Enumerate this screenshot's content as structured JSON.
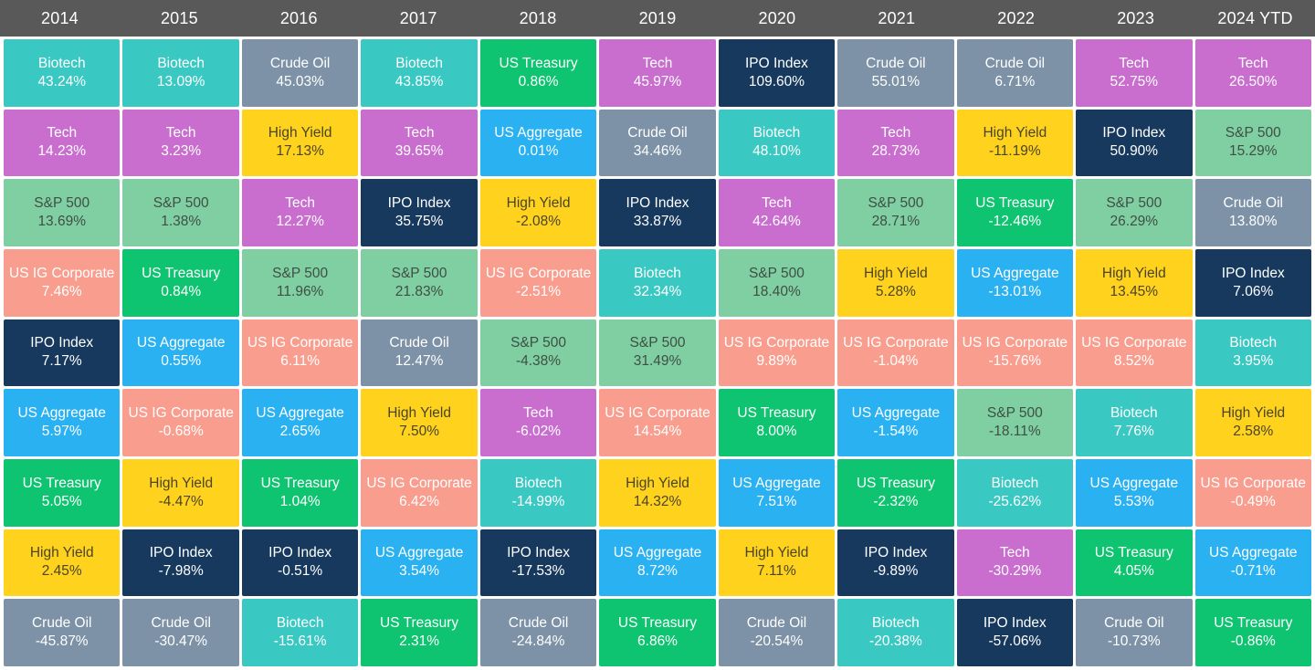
{
  "header": {
    "background": "#595959",
    "text_color": "#FFFFFF",
    "years": [
      "2014",
      "2015",
      "2016",
      "2017",
      "2018",
      "2019",
      "2020",
      "2021",
      "2022",
      "2023",
      "2024 YTD"
    ]
  },
  "asset_styles": {
    "Biotech": {
      "bg": "#3AC8C3",
      "fg": "#FFFFFF"
    },
    "Tech": {
      "bg": "#C96ECF",
      "fg": "#FFFFFF"
    },
    "Crude Oil": {
      "bg": "#7D92A7",
      "fg": "#FFFFFF"
    },
    "High Yield": {
      "bg": "#FFD21E",
      "fg": "#4A4526"
    },
    "S&P 500": {
      "bg": "#80CFA2",
      "fg": "#3E4F45"
    },
    "US IG Corporate": {
      "bg": "#F99E8E",
      "fg": "#FFFFFF"
    },
    "IPO Index": {
      "bg": "#17395E",
      "fg": "#FFFFFF"
    },
    "US Aggregate": {
      "bg": "#29B1F1",
      "fg": "#FFFFFF"
    },
    "US Treasury": {
      "bg": "#0EC471",
      "fg": "#FFFFFF"
    }
  },
  "chart_data": {
    "type": "table",
    "subtype": "periodic-table-of-returns",
    "columns": [
      "2014",
      "2015",
      "2016",
      "2017",
      "2018",
      "2019",
      "2020",
      "2021",
      "2022",
      "2023",
      "2024 YTD"
    ],
    "value_unit": "%",
    "columns_data": [
      {
        "year": "2014",
        "ranked": [
          {
            "asset": "Biotech",
            "value": 43.24
          },
          {
            "asset": "Tech",
            "value": 14.23
          },
          {
            "asset": "S&P 500",
            "value": 13.69
          },
          {
            "asset": "US IG Corporate",
            "value": 7.46
          },
          {
            "asset": "IPO Index",
            "value": 7.17
          },
          {
            "asset": "US Aggregate",
            "value": 5.97
          },
          {
            "asset": "US Treasury",
            "value": 5.05
          },
          {
            "asset": "High Yield",
            "value": 2.45
          },
          {
            "asset": "Crude Oil",
            "value": -45.87
          }
        ]
      },
      {
        "year": "2015",
        "ranked": [
          {
            "asset": "Biotech",
            "value": 13.09
          },
          {
            "asset": "Tech",
            "value": 3.23
          },
          {
            "asset": "S&P 500",
            "value": 1.38
          },
          {
            "asset": "US Treasury",
            "value": 0.84
          },
          {
            "asset": "US Aggregate",
            "value": 0.55
          },
          {
            "asset": "US IG Corporate",
            "value": -0.68
          },
          {
            "asset": "High Yield",
            "value": -4.47
          },
          {
            "asset": "IPO Index",
            "value": -7.98
          },
          {
            "asset": "Crude Oil",
            "value": -30.47
          }
        ]
      },
      {
        "year": "2016",
        "ranked": [
          {
            "asset": "Crude Oil",
            "value": 45.03
          },
          {
            "asset": "High Yield",
            "value": 17.13
          },
          {
            "asset": "Tech",
            "value": 12.27
          },
          {
            "asset": "S&P 500",
            "value": 11.96
          },
          {
            "asset": "US IG Corporate",
            "value": 6.11
          },
          {
            "asset": "US Aggregate",
            "value": 2.65
          },
          {
            "asset": "US Treasury",
            "value": 1.04
          },
          {
            "asset": "IPO Index",
            "value": -0.51
          },
          {
            "asset": "Biotech",
            "value": -15.61
          }
        ]
      },
      {
        "year": "2017",
        "ranked": [
          {
            "asset": "Biotech",
            "value": 43.85
          },
          {
            "asset": "Tech",
            "value": 39.65
          },
          {
            "asset": "IPO Index",
            "value": 35.75
          },
          {
            "asset": "S&P 500",
            "value": 21.83
          },
          {
            "asset": "Crude Oil",
            "value": 12.47
          },
          {
            "asset": "High Yield",
            "value": 7.5
          },
          {
            "asset": "US IG Corporate",
            "value": 6.42
          },
          {
            "asset": "US Aggregate",
            "value": 3.54
          },
          {
            "asset": "US Treasury",
            "value": 2.31
          }
        ]
      },
      {
        "year": "2018",
        "ranked": [
          {
            "asset": "US Treasury",
            "value": 0.86
          },
          {
            "asset": "US Aggregate",
            "value": 0.01
          },
          {
            "asset": "High Yield",
            "value": -2.08
          },
          {
            "asset": "US IG Corporate",
            "value": -2.51
          },
          {
            "asset": "S&P 500",
            "value": -4.38
          },
          {
            "asset": "Tech",
            "value": -6.02
          },
          {
            "asset": "Biotech",
            "value": -14.99
          },
          {
            "asset": "IPO Index",
            "value": -17.53
          },
          {
            "asset": "Crude Oil",
            "value": -24.84
          }
        ]
      },
      {
        "year": "2019",
        "ranked": [
          {
            "asset": "Tech",
            "value": 45.97
          },
          {
            "asset": "Crude Oil",
            "value": 34.46
          },
          {
            "asset": "IPO Index",
            "value": 33.87
          },
          {
            "asset": "Biotech",
            "value": 32.34
          },
          {
            "asset": "S&P 500",
            "value": 31.49
          },
          {
            "asset": "US IG Corporate",
            "value": 14.54
          },
          {
            "asset": "High Yield",
            "value": 14.32
          },
          {
            "asset": "US Aggregate",
            "value": 8.72
          },
          {
            "asset": "US Treasury",
            "value": 6.86
          }
        ]
      },
      {
        "year": "2020",
        "ranked": [
          {
            "asset": "IPO Index",
            "value": 109.6
          },
          {
            "asset": "Biotech",
            "value": 48.1
          },
          {
            "asset": "Tech",
            "value": 42.64
          },
          {
            "asset": "S&P 500",
            "value": 18.4
          },
          {
            "asset": "US IG Corporate",
            "value": 9.89
          },
          {
            "asset": "US Treasury",
            "value": 8.0
          },
          {
            "asset": "US Aggregate",
            "value": 7.51
          },
          {
            "asset": "High Yield",
            "value": 7.11
          },
          {
            "asset": "Crude Oil",
            "value": -20.54
          }
        ]
      },
      {
        "year": "2021",
        "ranked": [
          {
            "asset": "Crude Oil",
            "value": 55.01
          },
          {
            "asset": "Tech",
            "value": 28.73
          },
          {
            "asset": "S&P 500",
            "value": 28.71
          },
          {
            "asset": "High Yield",
            "value": 5.28
          },
          {
            "asset": "US IG Corporate",
            "value": -1.04
          },
          {
            "asset": "US Aggregate",
            "value": -1.54
          },
          {
            "asset": "US Treasury",
            "value": -2.32
          },
          {
            "asset": "IPO Index",
            "value": -9.89
          },
          {
            "asset": "Biotech",
            "value": -20.38
          }
        ]
      },
      {
        "year": "2022",
        "ranked": [
          {
            "asset": "Crude Oil",
            "value": 6.71
          },
          {
            "asset": "High Yield",
            "value": -11.19
          },
          {
            "asset": "US Treasury",
            "value": -12.46
          },
          {
            "asset": "US Aggregate",
            "value": -13.01
          },
          {
            "asset": "US IG Corporate",
            "value": -15.76
          },
          {
            "asset": "S&P 500",
            "value": -18.11
          },
          {
            "asset": "Biotech",
            "value": -25.62
          },
          {
            "asset": "Tech",
            "value": -30.29
          },
          {
            "asset": "IPO Index",
            "value": -57.06
          }
        ]
      },
      {
        "year": "2023",
        "ranked": [
          {
            "asset": "Tech",
            "value": 52.75
          },
          {
            "asset": "IPO Index",
            "value": 50.9
          },
          {
            "asset": "S&P 500",
            "value": 26.29
          },
          {
            "asset": "High Yield",
            "value": 13.45
          },
          {
            "asset": "US IG Corporate",
            "value": 8.52
          },
          {
            "asset": "Biotech",
            "value": 7.76
          },
          {
            "asset": "US Aggregate",
            "value": 5.53
          },
          {
            "asset": "US Treasury",
            "value": 4.05
          },
          {
            "asset": "Crude Oil",
            "value": -10.73
          }
        ]
      },
      {
        "year": "2024 YTD",
        "ranked": [
          {
            "asset": "Tech",
            "value": 26.5
          },
          {
            "asset": "S&P 500",
            "value": 15.29
          },
          {
            "asset": "Crude Oil",
            "value": 13.8
          },
          {
            "asset": "IPO Index",
            "value": 7.06
          },
          {
            "asset": "Biotech",
            "value": 3.95
          },
          {
            "asset": "High Yield",
            "value": 2.58
          },
          {
            "asset": "US IG Corporate",
            "value": -0.49
          },
          {
            "asset": "US Aggregate",
            "value": -0.71
          },
          {
            "asset": "US Treasury",
            "value": -0.86
          }
        ]
      }
    ]
  }
}
